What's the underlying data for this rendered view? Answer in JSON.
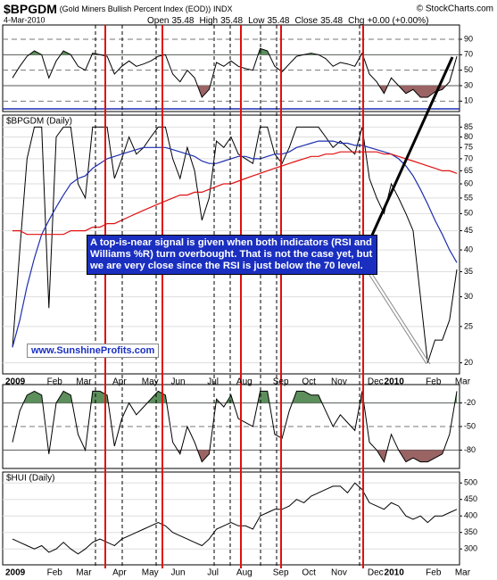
{
  "header": {
    "symbol": "$BPGDM",
    "name": "(Gold Miners Bullish Percent Index (EOD))",
    "exchange": "INDX",
    "date": "4-Mar-2010",
    "source": "© StockCharts.com",
    "quote": [
      {
        "label": "Open",
        "value": 35.48
      },
      {
        "label": "High",
        "value": 35.48
      },
      {
        "label": "Low",
        "value": 35.48
      },
      {
        "label": "Close",
        "value": 35.48
      },
      {
        "label": "Chg",
        "value": "+0.00 (+0.00%)"
      }
    ]
  },
  "chart_data": [
    {
      "type": "line",
      "ylim": [
        0,
        105
      ],
      "yticks": [
        90,
        70,
        50,
        30,
        10
      ],
      "overbought": 70,
      "oversold": 30,
      "series": [
        {
          "color": "#000000",
          "values": [
            40,
            55,
            68,
            75,
            70,
            40,
            62,
            75,
            70,
            55,
            50,
            72,
            70,
            68,
            45,
            55,
            62,
            55,
            58,
            62,
            68,
            70,
            45,
            35,
            50,
            40,
            15,
            25,
            60,
            55,
            62,
            55,
            52,
            50,
            78,
            75,
            55,
            48,
            58,
            68,
            70,
            72,
            70,
            65,
            55,
            60,
            58,
            55,
            72,
            45,
            35,
            20,
            40,
            30,
            20,
            25,
            15,
            15,
            22,
            25,
            35,
            68
          ]
        }
      ]
    },
    {
      "type": "line",
      "title": "$BPGDM (Daily)",
      "log_scale": true,
      "ylim": [
        19,
        90
      ],
      "yticks": [
        85,
        80,
        75,
        70,
        65,
        60,
        55,
        50,
        45,
        40,
        35,
        30,
        25,
        20
      ],
      "grid": true,
      "categories": [
        "2009",
        null,
        null,
        null,
        "Feb",
        null,
        null,
        null,
        "Mar",
        null,
        null,
        null,
        null,
        "Apr",
        null,
        null,
        null,
        "May",
        null,
        null,
        null,
        "Jun",
        null,
        null,
        null,
        null,
        "Jul",
        null,
        null,
        null,
        "Aug",
        null,
        null,
        null,
        null,
        "Sep",
        null,
        null,
        null,
        "Oct",
        null,
        null,
        null,
        "Nov",
        null,
        null,
        null,
        null,
        "Dec",
        null,
        null,
        null,
        "2010",
        null,
        null,
        null,
        "Feb",
        null,
        null,
        null,
        "Mar",
        null
      ],
      "series": [
        {
          "color": "#000000",
          "values": [
            22,
            40,
            70,
            85,
            85,
            28,
            80,
            85,
            85,
            60,
            55,
            85,
            85,
            85,
            62,
            70,
            80,
            72,
            75,
            80,
            85,
            85,
            70,
            62,
            75,
            65,
            48,
            55,
            78,
            75,
            80,
            72,
            70,
            68,
            85,
            85,
            72,
            68,
            75,
            85,
            85,
            85,
            85,
            80,
            75,
            78,
            75,
            72,
            85,
            62,
            55,
            50,
            60,
            55,
            50,
            45,
            30,
            20,
            23,
            23,
            26,
            35.48
          ]
        },
        {
          "color": "#1f2fb0",
          "values": [
            22,
            26,
            32,
            38,
            44,
            48,
            52,
            56,
            60,
            62,
            63,
            66,
            68,
            70,
            71,
            72,
            73,
            74,
            75,
            75,
            75,
            75,
            74,
            73,
            72,
            71,
            69,
            68,
            68,
            69,
            70,
            71,
            71,
            70,
            70,
            71,
            72,
            72,
            73,
            75,
            76,
            77,
            78,
            78,
            78,
            77,
            77,
            76,
            76,
            75,
            74,
            73,
            72,
            70,
            67,
            63,
            58,
            53,
            48,
            44,
            40,
            37
          ]
        },
        {
          "color": "#e01010",
          "values": [
            45,
            45,
            44,
            44,
            44,
            44,
            44,
            44,
            45,
            45,
            45,
            46,
            46,
            47,
            47,
            48,
            49,
            50,
            51,
            52,
            53,
            54,
            55,
            56,
            56,
            57,
            57,
            58,
            59,
            60,
            60,
            61,
            62,
            63,
            64,
            65,
            66,
            67,
            68,
            69,
            70,
            71,
            71,
            72,
            72,
            73,
            73,
            73,
            73,
            73,
            73,
            72,
            72,
            71,
            70,
            69,
            68,
            67,
            66,
            65,
            65,
            64
          ]
        }
      ],
      "annotation": {
        "lines": [
          "A top-is-near signal is given when both indicators (RSI and",
          "Williams %R) turn overbought. That is not the case yet, but",
          "we are very close since the RSI is just below the 70 level."
        ]
      },
      "watermark": "www.SunshineProfits.com"
    },
    {
      "type": "line",
      "ylim": [
        -100,
        0
      ],
      "yticks": [
        -20,
        -50,
        -80
      ],
      "overbought": -20,
      "oversold": -80,
      "series": [
        {
          "color": "#000000",
          "values": [
            -70,
            -30,
            -10,
            -5,
            -10,
            -85,
            -20,
            -5,
            -10,
            -60,
            -80,
            -5,
            -5,
            -10,
            -75,
            -40,
            -20,
            -35,
            -25,
            -15,
            -5,
            -10,
            -70,
            -85,
            -50,
            -70,
            -95,
            -85,
            -15,
            -25,
            -10,
            -40,
            -45,
            -50,
            -5,
            -5,
            -60,
            -65,
            -30,
            -5,
            -5,
            -10,
            -10,
            -30,
            -50,
            -35,
            -45,
            -55,
            -5,
            -70,
            -80,
            -95,
            -60,
            -80,
            -95,
            -90,
            -95,
            -95,
            -90,
            -85,
            -60,
            -5
          ]
        }
      ]
    },
    {
      "type": "line",
      "title": "$HUI (Daily)",
      "ylim": [
        260,
        525
      ],
      "yticks": [
        500,
        450,
        400,
        350,
        300
      ],
      "grid": true,
      "categories": [
        "2009",
        null,
        null,
        null,
        "Feb",
        null,
        null,
        null,
        "Mar",
        null,
        null,
        null,
        null,
        "Apr",
        null,
        null,
        null,
        "May",
        null,
        null,
        null,
        "Jun",
        null,
        null,
        null,
        null,
        "Jul",
        null,
        null,
        null,
        "Aug",
        null,
        null,
        null,
        null,
        "Sep",
        null,
        null,
        null,
        "Oct",
        null,
        null,
        null,
        "Nov",
        null,
        null,
        null,
        null,
        "Dec",
        null,
        null,
        null,
        "2010",
        null,
        null,
        null,
        "Feb",
        null,
        null,
        null,
        "Mar",
        null
      ],
      "series": [
        {
          "color": "#000000",
          "values": [
            330,
            320,
            310,
            300,
            310,
            290,
            300,
            320,
            300,
            285,
            300,
            320,
            330,
            320,
            310,
            330,
            340,
            350,
            360,
            370,
            380,
            370,
            350,
            340,
            330,
            320,
            310,
            330,
            360,
            370,
            380,
            370,
            370,
            360,
            400,
            410,
            420,
            420,
            430,
            450,
            440,
            460,
            470,
            480,
            490,
            490,
            470,
            500,
            480,
            440,
            430,
            420,
            440,
            430,
            400,
            390,
            400,
            380,
            400,
            400,
            410,
            420
          ]
        }
      ]
    }
  ]
}
